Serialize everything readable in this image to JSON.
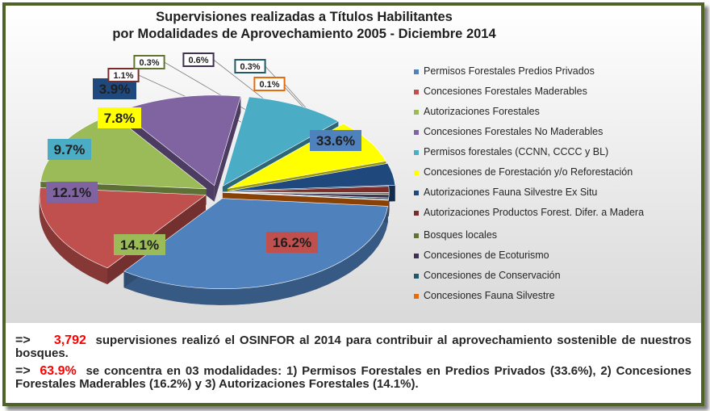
{
  "chart_data": {
    "type": "pie",
    "title_line1": "Supervisiones realizadas a Títulos Habilitantes",
    "title_line2": "por Modalidades de Aprovechamiento 2005 - Diciembre 2014",
    "legend_position": "right",
    "slices": [
      {
        "label": "Permisos Forestales Predios Privados",
        "value": 33.6,
        "display": "33.6%",
        "color": "#4f81bd"
      },
      {
        "label": "Concesiones Forestales Maderables",
        "value": 16.2,
        "display": "16.2%",
        "color": "#c0504d"
      },
      {
        "label": "Autorizaciones Forestales",
        "value": 14.1,
        "display": "14.1%",
        "color": "#9bbb59"
      },
      {
        "label": "Concesiones Forestales No Maderables",
        "value": 12.1,
        "display": "12.1%",
        "color": "#8064a2"
      },
      {
        "label": "Permisos forestales (CCNN, CCCC y BL)",
        "value": 9.7,
        "display": "9.7%",
        "color": "#4bacc6"
      },
      {
        "label": "Concesiones de Forestación y/o Reforestación",
        "value": 7.8,
        "display": "7.8%",
        "color": "#ffff00"
      },
      {
        "label": "Autorizaciones Fauna Silvestre Ex Situ",
        "value": 3.9,
        "display": "3.9%",
        "color": "#1f497d"
      },
      {
        "label": "Autorizaciones Productos Forest. Difer. a Madera",
        "value": 1.1,
        "display": "1.1%",
        "color": "#7b2c2a"
      },
      {
        "label": "Bosques locales",
        "value": 0.3,
        "display": "0.3%",
        "color": "#5f7530"
      },
      {
        "label": "Concesiones de Ecoturismo",
        "value": 0.6,
        "display": "0.6%",
        "color": "#403152"
      },
      {
        "label": "Concesiones de Conservación",
        "value": 0.3,
        "display": "0.3%",
        "color": "#215968"
      },
      {
        "label": "Concesiones Fauna Silvestre",
        "value": 0.1,
        "display": "0.1%",
        "color": "#e46c0a"
      }
    ]
  },
  "notes": {
    "arrow": "=>",
    "p1_count": "3,792",
    "p1_rest": "supervisiones realizó el OSINFOR al 2014 para contribuir al aprovechamiento sostenible de nuestros bosques.",
    "p2_pct": "63.9%",
    "p2_rest": "se concentra en 03 modalidades: 1) Permisos Forestales en Predios Privados (33.6%), 2) Concesiones Forestales Maderables (16.2%) y 3) Autorizaciones Forestales (14.1%)."
  }
}
